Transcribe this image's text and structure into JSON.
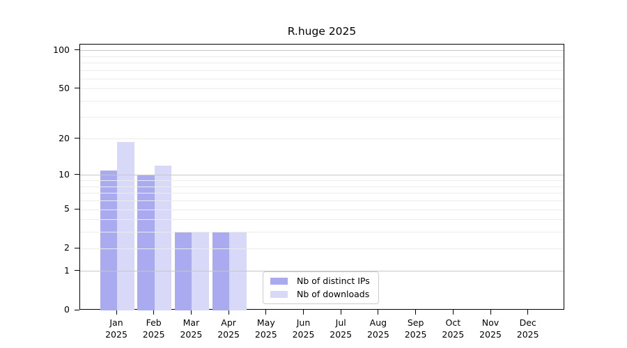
{
  "chart_data": {
    "type": "bar",
    "title": "R.huge 2025",
    "year": "2025",
    "categories": [
      "Jan",
      "Feb",
      "Mar",
      "Apr",
      "May",
      "Jun",
      "Jul",
      "Aug",
      "Sep",
      "Oct",
      "Nov",
      "Dec"
    ],
    "series": [
      {
        "name": "Nb of distinct IPs",
        "color": "#aaaaf0",
        "values": [
          11,
          10,
          3,
          3,
          0,
          0,
          0,
          0,
          0,
          0,
          0,
          0
        ]
      },
      {
        "name": "Nb of downloads",
        "color": "#d8d8f8",
        "values": [
          19,
          12,
          3,
          3,
          0,
          0,
          0,
          0,
          0,
          0,
          0,
          0
        ]
      }
    ],
    "yscale": "log1p",
    "ylim": [
      0,
      110
    ],
    "yticks": [
      0,
      1,
      2,
      5,
      10,
      20,
      50,
      100
    ],
    "major_gridlines": [
      1,
      10,
      100
    ],
    "minor_gridlines": [
      2,
      3,
      4,
      5,
      6,
      7,
      8,
      9,
      20,
      30,
      40,
      50,
      60,
      70,
      80,
      90
    ],
    "grid": "horizontal",
    "legend_position": "bottom-center"
  }
}
